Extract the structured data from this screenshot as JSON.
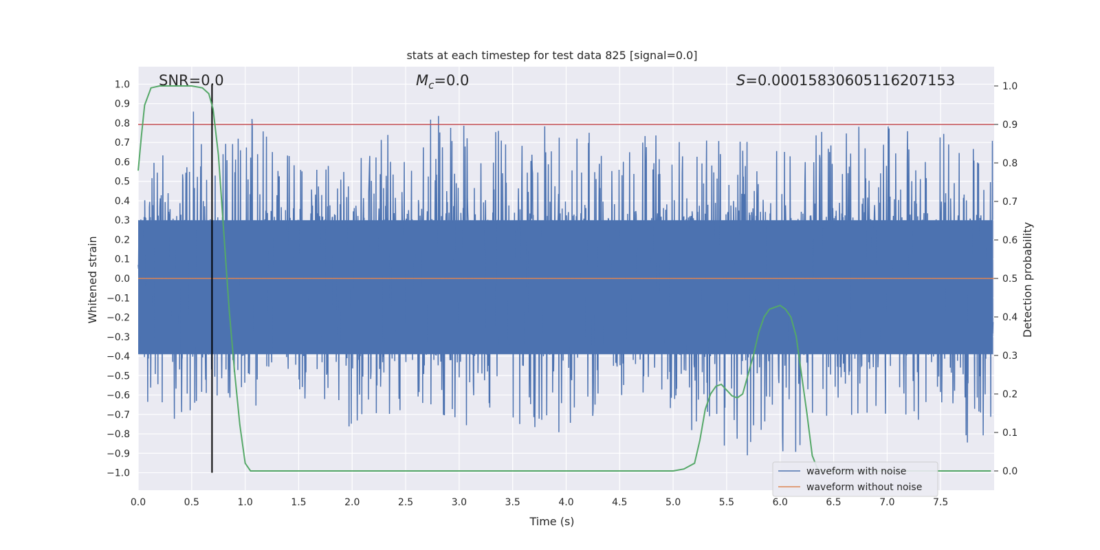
{
  "chart_data": {
    "type": "line",
    "title": "stats at each timestep for test data 825 [signal=0.0]",
    "xlabel": "Time (s)",
    "ylabel_left": "Whitened strain",
    "ylabel_right": "Detection probability",
    "xlim": [
      0.0,
      8.0
    ],
    "ylim_left": [
      -1.09,
      1.09
    ],
    "ylim_right": [
      -0.05,
      1.05
    ],
    "x_ticks": [
      "0.0",
      "0.5",
      "1.0",
      "1.5",
      "2.0",
      "2.5",
      "3.0",
      "3.5",
      "4.0",
      "4.5",
      "5.0",
      "5.5",
      "6.0",
      "6.5",
      "7.0",
      "7.5"
    ],
    "y_left_ticks": [
      "1.0",
      "0.9",
      "0.8",
      "0.7",
      "0.6",
      "0.5",
      "0.4",
      "0.3",
      "0.2",
      "0.1",
      "0.0",
      "−0.1",
      "−0.2",
      "−0.3",
      "−0.4",
      "−0.5",
      "−0.6",
      "−0.7",
      "−0.8",
      "−0.9",
      "−1.0"
    ],
    "y_right_ticks": [
      "1.0",
      "0.9",
      "0.8",
      "0.7",
      "0.6",
      "0.5",
      "0.4",
      "0.3",
      "0.2",
      "0.1",
      "0.0"
    ],
    "grid": true,
    "annotations": {
      "snr": "SNR=0.0",
      "mc_symbol": "M",
      "mc_sub": "c",
      "mc_value": "=0.0",
      "s_symbol": "S",
      "s_value": "=0.00015830605116207153"
    },
    "threshold_line": {
      "value_right": 0.9,
      "color": "#c44e52"
    },
    "vertical_marker": {
      "x": 0.69,
      "color": "#000000"
    },
    "noise_profile": {
      "x": [
        0.0,
        0.2,
        0.4,
        0.6,
        0.8,
        1.0,
        1.5,
        2.0,
        2.5,
        3.0,
        3.5,
        4.0,
        4.5,
        5.0,
        5.5,
        6.0,
        6.5,
        7.0,
        7.5,
        8.0
      ],
      "max": [
        0.62,
        0.74,
        1.0,
        0.85,
        0.68,
        0.93,
        0.62,
        0.75,
        0.76,
        0.89,
        0.72,
        0.85,
        0.68,
        0.83,
        0.72,
        0.74,
        0.76,
        0.9,
        0.78,
        0.77
      ],
      "min": [
        -0.79,
        -0.62,
        -0.77,
        -0.62,
        -0.6,
        -0.7,
        -0.6,
        -0.84,
        -0.66,
        -0.76,
        -0.75,
        -0.88,
        -0.66,
        -0.72,
        -0.9,
        -1.0,
        -0.7,
        -0.72,
        -0.82,
        -0.95
      ]
    },
    "series": [
      {
        "name": "waveform with noise",
        "color": "#4c72b0",
        "kind": "noise"
      },
      {
        "name": "waveform without noise",
        "color": "#dd8452",
        "kind": "flat",
        "value": 0.0
      },
      {
        "name": "",
        "color": "#55a868",
        "axis": "right",
        "x": [
          0.0,
          0.03,
          0.06,
          0.12,
          0.2,
          0.3,
          0.4,
          0.5,
          0.6,
          0.66,
          0.7,
          0.75,
          0.8,
          0.85,
          0.9,
          0.95,
          1.0,
          1.05,
          1.1,
          1.5,
          2.0,
          3.0,
          4.0,
          4.5,
          5.0,
          5.1,
          5.2,
          5.25,
          5.3,
          5.35,
          5.4,
          5.45,
          5.5,
          5.55,
          5.6,
          5.65,
          5.7,
          5.75,
          5.8,
          5.85,
          5.9,
          5.95,
          6.0,
          6.05,
          6.1,
          6.15,
          6.2,
          6.25,
          6.3,
          6.35,
          6.4,
          6.5,
          7.0,
          7.5,
          7.97
        ],
        "y": [
          0.78,
          0.87,
          0.95,
          0.995,
          1.0,
          1.0,
          1.0,
          1.0,
          0.995,
          0.98,
          0.94,
          0.82,
          0.62,
          0.42,
          0.26,
          0.12,
          0.02,
          0.0,
          0.0,
          0.0,
          0.0,
          0.0,
          0.0,
          0.0,
          0.0,
          0.005,
          0.02,
          0.08,
          0.16,
          0.2,
          0.22,
          0.225,
          0.21,
          0.195,
          0.19,
          0.2,
          0.25,
          0.3,
          0.36,
          0.4,
          0.42,
          0.425,
          0.43,
          0.42,
          0.4,
          0.35,
          0.25,
          0.15,
          0.04,
          0.005,
          0.0,
          0.0,
          0.0,
          0.0,
          0.0
        ]
      }
    ],
    "legend": {
      "placement": "lower-right"
    }
  }
}
